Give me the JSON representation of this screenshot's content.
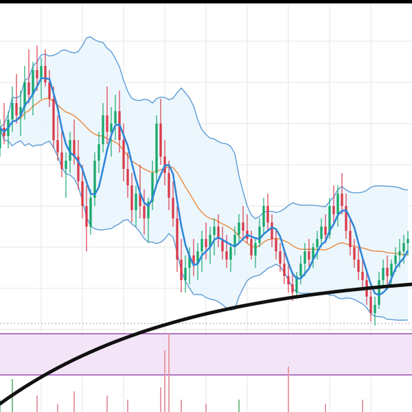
{
  "chart_data": {
    "type": "candlestick",
    "xlim": [
      0,
      100
    ],
    "ylim": [
      0,
      100
    ],
    "grid": true,
    "colors": {
      "up": "#18a86b",
      "down": "#d93a4a",
      "bollinger_band": "#5b9bd5",
      "bollinger_fill": "#e9f4fd",
      "fast_ma": "#2f86d6",
      "slow_ma": "#e8873a",
      "long_ma": "#111111",
      "zone_fill": "#f1e0f6",
      "zone_edge": "#9a4cb2",
      "grid": "#e6e6e6",
      "volume_up": "#7bbf8c",
      "volume_down": "#e79aa6"
    },
    "candles": [
      [
        0,
        64,
        71,
        62,
        69
      ],
      [
        1,
        69,
        75,
        65,
        67
      ],
      [
        2,
        67,
        73,
        64,
        71
      ],
      [
        3,
        71,
        79,
        68,
        75
      ],
      [
        4,
        75,
        82,
        70,
        72
      ],
      [
        5,
        72,
        78,
        67,
        74
      ],
      [
        6,
        74,
        84,
        71,
        80
      ],
      [
        7,
        80,
        88,
        75,
        77
      ],
      [
        8,
        77,
        85,
        72,
        83
      ],
      [
        9,
        83,
        89,
        78,
        81
      ],
      [
        10,
        81,
        86,
        76,
        84
      ],
      [
        11,
        84,
        88,
        79,
        80
      ],
      [
        12,
        80,
        83,
        74,
        76
      ],
      [
        13,
        76,
        79,
        64,
        66
      ],
      [
        14,
        66,
        72,
        61,
        63
      ],
      [
        15,
        63,
        68,
        57,
        59
      ],
      [
        16,
        59,
        63,
        52,
        61
      ],
      [
        17,
        61,
        68,
        58,
        66
      ],
      [
        18,
        66,
        71,
        60,
        62
      ],
      [
        19,
        62,
        66,
        54,
        56
      ],
      [
        20,
        56,
        60,
        47,
        50
      ],
      [
        21,
        50,
        55,
        39,
        45
      ],
      [
        22,
        45,
        54,
        43,
        52
      ],
      [
        23,
        52,
        63,
        50,
        61
      ],
      [
        24,
        61,
        68,
        58,
        65
      ],
      [
        25,
        65,
        75,
        63,
        72
      ],
      [
        26,
        72,
        79,
        65,
        68
      ],
      [
        27,
        68,
        74,
        62,
        70
      ],
      [
        28,
        70,
        77,
        66,
        73
      ],
      [
        29,
        73,
        78,
        63,
        66
      ],
      [
        30,
        66,
        70,
        56,
        59
      ],
      [
        31,
        59,
        63,
        52,
        55
      ],
      [
        32,
        55,
        58,
        46,
        49
      ],
      [
        33,
        49,
        55,
        45,
        53
      ],
      [
        34,
        53,
        60,
        47,
        50
      ],
      [
        35,
        50,
        54,
        43,
        47
      ],
      [
        36,
        47,
        52,
        41,
        51
      ],
      [
        37,
        51,
        61,
        49,
        58
      ],
      [
        38,
        58,
        72,
        55,
        70
      ],
      [
        39,
        70,
        76,
        60,
        62
      ],
      [
        40,
        62,
        66,
        55,
        58
      ],
      [
        41,
        58,
        61,
        49,
        52
      ],
      [
        42,
        52,
        56,
        45,
        47
      ],
      [
        43,
        47,
        50,
        34,
        37
      ],
      [
        44,
        37,
        42,
        29,
        32
      ],
      [
        45,
        32,
        38,
        29,
        35
      ],
      [
        46,
        35,
        40,
        31,
        38
      ],
      [
        47,
        38,
        42,
        33,
        36
      ],
      [
        48,
        36,
        41,
        32,
        39
      ],
      [
        49,
        39,
        44,
        34,
        42
      ],
      [
        50,
        42,
        46,
        37,
        40
      ],
      [
        51,
        40,
        45,
        36,
        43
      ],
      [
        52,
        43,
        47,
        38,
        45
      ],
      [
        53,
        45,
        48,
        40,
        42
      ],
      [
        54,
        42,
        45,
        37,
        39
      ],
      [
        55,
        39,
        43,
        35,
        37
      ],
      [
        56,
        37,
        41,
        34,
        40
      ],
      [
        57,
        40,
        45,
        38,
        43
      ],
      [
        58,
        43,
        48,
        41,
        46
      ],
      [
        59,
        46,
        50,
        42,
        44
      ],
      [
        60,
        44,
        48,
        41,
        42
      ],
      [
        61,
        42,
        44,
        37,
        38
      ],
      [
        62,
        38,
        42,
        35,
        41
      ],
      [
        63,
        41,
        47,
        40,
        45
      ],
      [
        64,
        45,
        52,
        43,
        50
      ],
      [
        65,
        50,
        53,
        44,
        46
      ],
      [
        66,
        46,
        48,
        40,
        42
      ],
      [
        67,
        42,
        44,
        37,
        39
      ],
      [
        68,
        39,
        41,
        34,
        36
      ],
      [
        69,
        36,
        39,
        31,
        33
      ],
      [
        70,
        33,
        36,
        29,
        31
      ],
      [
        71,
        31,
        34,
        27,
        29
      ],
      [
        72,
        29,
        34,
        28,
        33
      ],
      [
        73,
        33,
        38,
        31,
        36
      ],
      [
        74,
        36,
        41,
        33,
        39
      ],
      [
        75,
        39,
        42,
        35,
        37
      ],
      [
        76,
        37,
        41,
        35,
        40
      ],
      [
        77,
        40,
        44,
        37,
        42
      ],
      [
        78,
        42,
        47,
        40,
        45
      ],
      [
        79,
        45,
        48,
        41,
        43
      ],
      [
        80,
        43,
        52,
        42,
        50
      ],
      [
        81,
        50,
        55,
        46,
        48
      ],
      [
        82,
        48,
        55,
        45,
        53
      ],
      [
        83,
        53,
        58,
        48,
        50
      ],
      [
        84,
        50,
        53,
        42,
        44
      ],
      [
        85,
        44,
        47,
        38,
        40
      ],
      [
        86,
        40,
        42,
        35,
        37
      ],
      [
        87,
        37,
        40,
        32,
        34
      ],
      [
        88,
        34,
        37,
        30,
        32
      ],
      [
        89,
        32,
        34,
        26,
        28
      ],
      [
        90,
        28,
        31,
        22,
        24
      ],
      [
        91,
        24,
        28,
        21,
        26
      ],
      [
        92,
        26,
        34,
        25,
        32
      ],
      [
        93,
        32,
        37,
        30,
        35
      ],
      [
        94,
        35,
        38,
        31,
        33
      ],
      [
        95,
        33,
        37,
        31,
        36
      ],
      [
        96,
        36,
        40,
        34,
        38
      ],
      [
        97,
        38,
        42,
        35,
        39
      ],
      [
        98,
        39,
        43,
        36,
        41
      ],
      [
        99,
        41,
        44,
        38,
        42
      ]
    ],
    "zone": [
      9,
      19
    ],
    "volume": [
      [
        0,
        3
      ],
      [
        3,
        8
      ],
      [
        9,
        4
      ],
      [
        14,
        2
      ],
      [
        18,
        5
      ],
      [
        26,
        4
      ],
      [
        31,
        3
      ],
      [
        39,
        6
      ],
      [
        40,
        15
      ],
      [
        41,
        19
      ],
      [
        44,
        3
      ],
      [
        50,
        2
      ],
      [
        58,
        3
      ],
      [
        70,
        11
      ],
      [
        79,
        2
      ],
      [
        88,
        3
      ]
    ]
  }
}
